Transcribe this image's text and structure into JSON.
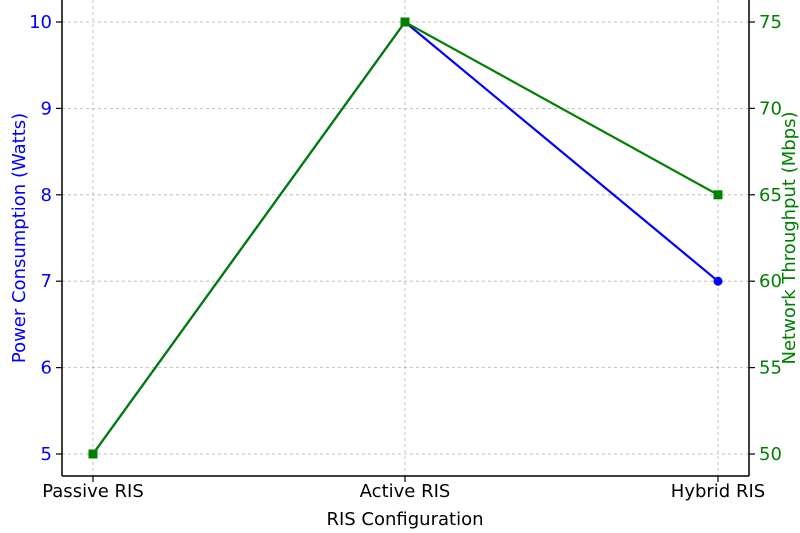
{
  "chart_data": {
    "type": "line",
    "categories": [
      "Passive RIS",
      "Active RIS",
      "Hybrid RIS"
    ],
    "xlabel": "RIS Configuration",
    "y_left": {
      "label": "Power Consumption (Watts)",
      "color": "#0000ff",
      "ticks": [
        5,
        6,
        7,
        8,
        9,
        10
      ],
      "range": [
        4.9,
        10.2
      ]
    },
    "y_right": {
      "label": "Network Throughput (Mbps)",
      "color": "#008000",
      "ticks": [
        50,
        55,
        60,
        65,
        70,
        75
      ],
      "range": [
        49.5,
        76
      ]
    },
    "series": [
      {
        "axis": "left",
        "color": "#0000ff",
        "marker": "circle",
        "values": [
          5,
          10,
          7
        ]
      },
      {
        "axis": "right",
        "color": "#008000",
        "marker": "square",
        "values": [
          50,
          75,
          65
        ]
      }
    ],
    "grid": true
  }
}
